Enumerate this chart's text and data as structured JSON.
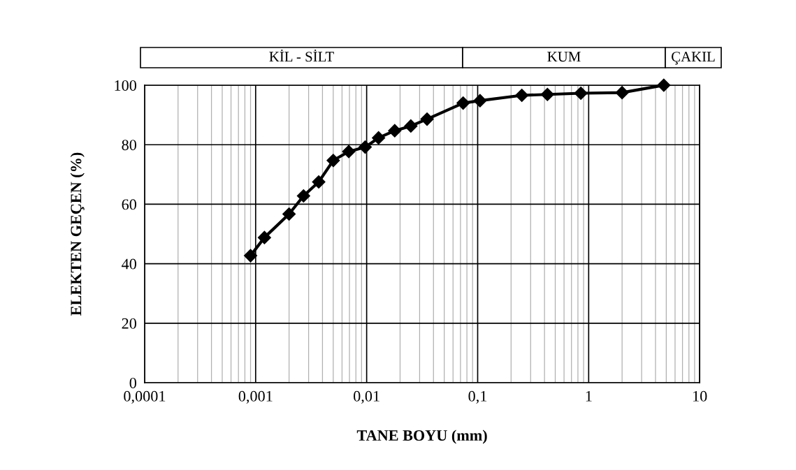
{
  "chart_data": {
    "type": "line",
    "xlabel": "TANE BOYU (mm)",
    "ylabel": "ELEKTEN GEÇEN (%)",
    "x": [
      0.0009,
      0.0012,
      0.002,
      0.0027,
      0.0037,
      0.005,
      0.0069,
      0.0097,
      0.0128,
      0.0179,
      0.025,
      0.035,
      0.074,
      0.105,
      0.25,
      0.425,
      0.85,
      2.0,
      4.75
    ],
    "series": [
      {
        "color": "#000000",
        "values": [
          42.7,
          48.8,
          56.7,
          62.8,
          67.5,
          74.7,
          77.7,
          79.2,
          82.3,
          84.7,
          86.3,
          88.6,
          94.0,
          94.8,
          96.6,
          96.9,
          97.3,
          97.5,
          100
        ]
      }
    ],
    "log": "x",
    "xlim": [
      0.0001,
      10
    ],
    "xticks": [
      {
        "value": 0.0001,
        "label": "0,0001"
      },
      {
        "value": 0.001,
        "label": "0,001"
      },
      {
        "value": 0.01,
        "label": "0,01"
      },
      {
        "value": 0.1,
        "label": "0,1"
      },
      1,
      10
    ],
    "ylim": [
      0,
      100
    ],
    "yticks": [
      0,
      20,
      40,
      60,
      80,
      100
    ],
    "grid": true,
    "marker": "diamond",
    "line_style": "solid",
    "annotations": [
      "KİL - SİLT",
      "KUM",
      "ÇAKIL"
    ]
  }
}
